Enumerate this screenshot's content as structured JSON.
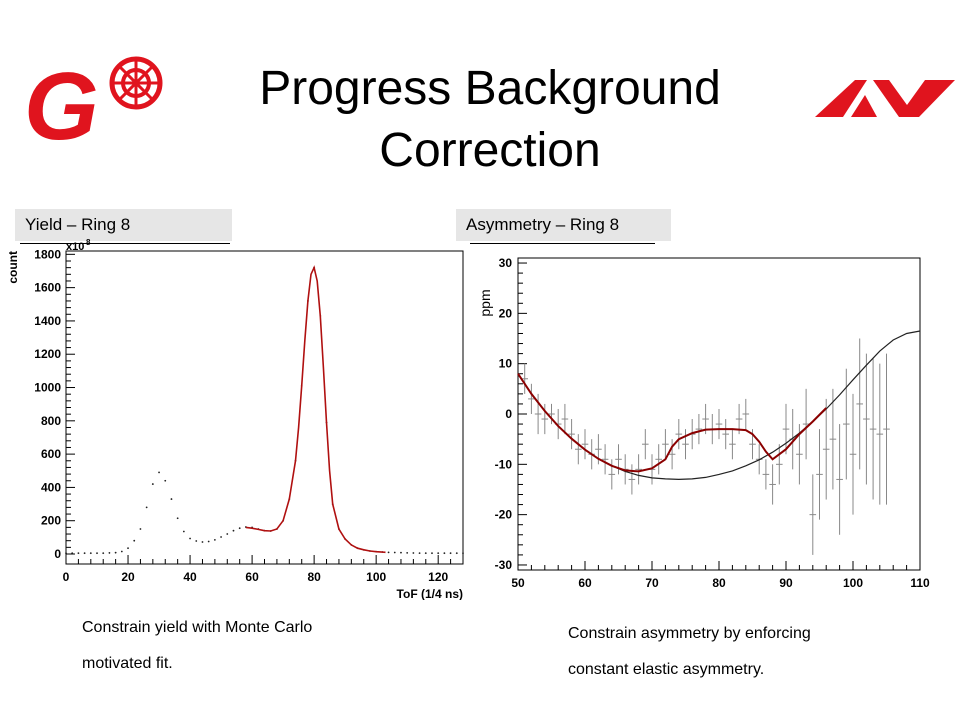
{
  "slide": {
    "title_line1": "Progress Background",
    "title_line2": "Correction"
  },
  "logos": {
    "left_letter": "G",
    "brand_color": "#e0141e"
  },
  "panels": {
    "left_tag": "Yield – Ring 8",
    "right_tag": "Asymmetry – Ring 8",
    "left_caption_line1": "Constrain yield with Monte Carlo",
    "left_caption_line2": "motivated fit.",
    "right_caption_line1": "Constrain asymmetry by enforcing",
    "right_caption_line2": "constant elastic asymmetry."
  },
  "chart_data": [
    {
      "type": "scatter",
      "xlabel": "ToF (1/4 ns)",
      "ylabel": "count",
      "y_exponent_label": "x10",
      "y_exponent_power": "8",
      "xlim": [
        0,
        128
      ],
      "ylim": [
        -60,
        1820
      ],
      "xticks": [
        0,
        20,
        40,
        60,
        80,
        100,
        120
      ],
      "yticks": [
        0,
        200,
        400,
        600,
        800,
        1000,
        1200,
        1400,
        1600,
        1800
      ],
      "series": [
        {
          "role": "data",
          "color": "#222222",
          "points": [
            [
              0,
              5
            ],
            [
              4,
              5
            ],
            [
              8,
              5
            ],
            [
              12,
              5
            ],
            [
              16,
              8
            ],
            [
              18,
              15
            ],
            [
              20,
              35
            ],
            [
              22,
              80
            ],
            [
              24,
              150
            ],
            [
              25,
              210
            ],
            [
              26,
              280
            ],
            [
              27,
              360
            ],
            [
              28,
              420
            ],
            [
              29,
              470
            ],
            [
              30,
              490
            ],
            [
              31,
              480
            ],
            [
              32,
              440
            ],
            [
              33,
              390
            ],
            [
              34,
              330
            ],
            [
              35,
              270
            ],
            [
              36,
              215
            ],
            [
              37,
              170
            ],
            [
              38,
              135
            ],
            [
              39,
              110
            ],
            [
              40,
              93
            ],
            [
              42,
              78
            ],
            [
              44,
              72
            ],
            [
              46,
              75
            ],
            [
              48,
              85
            ],
            [
              50,
              102
            ],
            [
              52,
              120
            ],
            [
              54,
              140
            ],
            [
              56,
              155
            ],
            [
              58,
              162
            ],
            [
              60,
              160
            ],
            [
              62,
              150
            ],
            [
              64,
              140
            ],
            [
              66,
              138
            ],
            [
              68,
              150
            ],
            [
              70,
              200
            ],
            [
              72,
              330
            ],
            [
              74,
              560
            ],
            [
              75,
              760
            ],
            [
              76,
              1010
            ],
            [
              77,
              1280
            ],
            [
              78,
              1520
            ],
            [
              79,
              1680
            ],
            [
              80,
              1720
            ],
            [
              81,
              1640
            ],
            [
              82,
              1430
            ],
            [
              83,
              1120
            ],
            [
              84,
              790
            ],
            [
              85,
              500
            ],
            [
              86,
              300
            ],
            [
              88,
              150
            ],
            [
              90,
              90
            ],
            [
              92,
              55
            ],
            [
              94,
              35
            ],
            [
              96,
              25
            ],
            [
              98,
              18
            ],
            [
              100,
              14
            ],
            [
              104,
              10
            ],
            [
              108,
              8
            ],
            [
              112,
              6
            ],
            [
              116,
              5
            ],
            [
              120,
              5
            ],
            [
              124,
              5
            ],
            [
              128,
              5
            ]
          ]
        },
        {
          "role": "fit",
          "color": "#b01010",
          "points": [
            [
              58,
              160
            ],
            [
              60,
              155
            ],
            [
              62,
              148
            ],
            [
              64,
              140
            ],
            [
              66,
              138
            ],
            [
              68,
              150
            ],
            [
              70,
              200
            ],
            [
              72,
              330
            ],
            [
              74,
              560
            ],
            [
              75,
              760
            ],
            [
              76,
              1010
            ],
            [
              77,
              1280
            ],
            [
              78,
              1520
            ],
            [
              79,
              1680
            ],
            [
              80,
              1720
            ],
            [
              81,
              1640
            ],
            [
              82,
              1430
            ],
            [
              83,
              1120
            ],
            [
              84,
              790
            ],
            [
              85,
              500
            ],
            [
              86,
              300
            ],
            [
              88,
              150
            ],
            [
              90,
              90
            ],
            [
              92,
              55
            ],
            [
              94,
              35
            ],
            [
              96,
              25
            ],
            [
              98,
              18
            ],
            [
              100,
              14
            ],
            [
              103,
              10
            ]
          ]
        }
      ]
    },
    {
      "type": "scatter",
      "xlabel": "",
      "ylabel": "ppm",
      "xlim": [
        50,
        110
      ],
      "ylim": [
        -31,
        31
      ],
      "xticks": [
        50,
        60,
        70,
        80,
        90,
        100,
        110
      ],
      "yticks": [
        -30,
        -20,
        -10,
        0,
        10,
        20,
        30
      ],
      "series": [
        {
          "role": "data",
          "color": "#888888",
          "points": [
            [
              51,
              7,
              3
            ],
            [
              52,
              3,
              3
            ],
            [
              53,
              0,
              4
            ],
            [
              54,
              -1,
              3
            ],
            [
              55,
              0,
              2
            ],
            [
              56,
              -2,
              3
            ],
            [
              57,
              -1,
              3
            ],
            [
              58,
              -4,
              3
            ],
            [
              59,
              -7,
              3
            ],
            [
              60,
              -6,
              3
            ],
            [
              61,
              -8,
              3
            ],
            [
              62,
              -7,
              3
            ],
            [
              63,
              -9,
              3
            ],
            [
              64,
              -12,
              3
            ],
            [
              65,
              -9,
              3
            ],
            [
              66,
              -11,
              3
            ],
            [
              67,
              -13,
              3
            ],
            [
              68,
              -11,
              3
            ],
            [
              69,
              -6,
              3
            ],
            [
              70,
              -11,
              3
            ],
            [
              71,
              -9,
              3
            ],
            [
              72,
              -6,
              3
            ],
            [
              73,
              -8,
              3
            ],
            [
              74,
              -4,
              3
            ],
            [
              75,
              -6,
              3
            ],
            [
              76,
              -4,
              3
            ],
            [
              77,
              -3,
              3
            ],
            [
              78,
              -1,
              3
            ],
            [
              79,
              -3,
              3
            ],
            [
              80,
              -2,
              3
            ],
            [
              81,
              -4,
              3
            ],
            [
              82,
              -6,
              3
            ],
            [
              83,
              -1,
              3
            ],
            [
              84,
              0,
              3
            ],
            [
              85,
              -6,
              3
            ],
            [
              86,
              -9,
              3
            ],
            [
              87,
              -12,
              3
            ],
            [
              88,
              -14,
              4
            ],
            [
              89,
              -10,
              4
            ],
            [
              90,
              -3,
              5
            ],
            [
              91,
              -5,
              6
            ],
            [
              92,
              -8,
              6
            ],
            [
              93,
              -2,
              7
            ],
            [
              94,
              -20,
              8
            ],
            [
              95,
              -12,
              9
            ],
            [
              96,
              -7,
              10
            ],
            [
              97,
              -5,
              10
            ],
            [
              98,
              -13,
              11
            ],
            [
              99,
              -2,
              11
            ],
            [
              100,
              -8,
              12
            ],
            [
              101,
              2,
              13
            ],
            [
              102,
              -1,
              13
            ],
            [
              103,
              -3,
              14
            ],
            [
              104,
              -4,
              14
            ],
            [
              105,
              -3,
              15
            ]
          ]
        },
        {
          "role": "smooth-fit",
          "color": "#222222",
          "points": [
            [
              50,
              8
            ],
            [
              52,
              4
            ],
            [
              54,
              0.6
            ],
            [
              56,
              -2.4
            ],
            [
              58,
              -4.9
            ],
            [
              60,
              -7.1
            ],
            [
              62,
              -8.9
            ],
            [
              64,
              -10.3
            ],
            [
              66,
              -11.4
            ],
            [
              68,
              -12.2
            ],
            [
              70,
              -12.7
            ],
            [
              72,
              -12.9
            ],
            [
              74,
              -13
            ],
            [
              76,
              -12.9
            ],
            [
              78,
              -12.6
            ],
            [
              80,
              -12
            ],
            [
              82,
              -11.3
            ],
            [
              84,
              -10.3
            ],
            [
              86,
              -9.1
            ],
            [
              88,
              -7.6
            ],
            [
              90,
              -5.8
            ],
            [
              92,
              -3.8
            ],
            [
              94,
              -1.5
            ],
            [
              96,
              1
            ],
            [
              98,
              3.8
            ],
            [
              100,
              6.8
            ],
            [
              102,
              9.7
            ],
            [
              104,
              12.5
            ],
            [
              106,
              14.7
            ],
            [
              108,
              16
            ],
            [
              110,
              16.5
            ]
          ]
        },
        {
          "role": "constrained-fit",
          "color": "#8b0000",
          "points": [
            [
              50,
              8
            ],
            [
              52,
              4
            ],
            [
              54,
              0.6
            ],
            [
              56,
              -2.4
            ],
            [
              58,
              -4.9
            ],
            [
              60,
              -7.1
            ],
            [
              62,
              -8.9
            ],
            [
              64,
              -10.3
            ],
            [
              66,
              -11.2
            ],
            [
              68,
              -11.4
            ],
            [
              70,
              -10.8
            ],
            [
              72,
              -9
            ],
            [
              73,
              -6.5
            ],
            [
              74,
              -5
            ],
            [
              76,
              -3.8
            ],
            [
              78,
              -3.1
            ],
            [
              80,
              -3
            ],
            [
              82,
              -3
            ],
            [
              84,
              -3.2
            ],
            [
              85,
              -4
            ],
            [
              86,
              -5.5
            ],
            [
              87,
              -7.5
            ],
            [
              88,
              -9
            ],
            [
              90,
              -7
            ],
            [
              92,
              -4
            ],
            [
              94,
              -1.5
            ],
            [
              96,
              1.2
            ]
          ]
        }
      ]
    }
  ]
}
